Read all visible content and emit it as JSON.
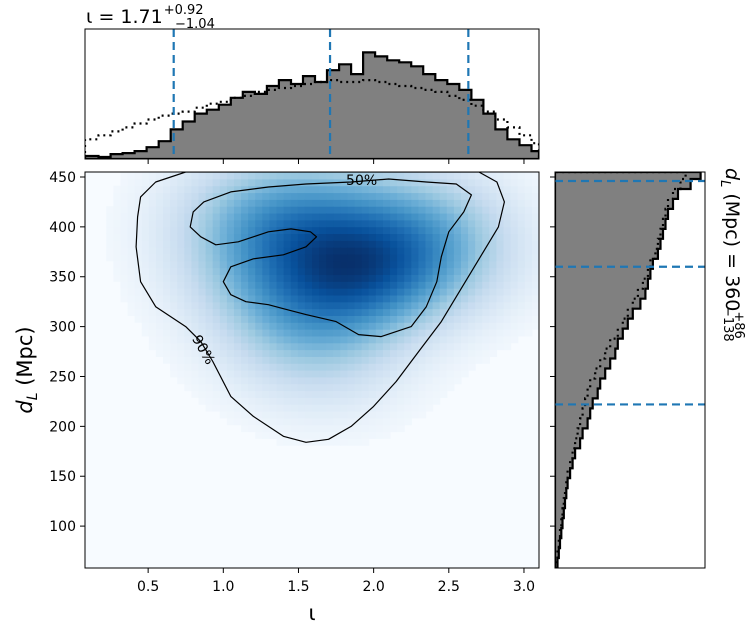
{
  "chart_data": {
    "type": "corner",
    "joint": {
      "type": "heatmap",
      "xlabel": "ι",
      "ylabel": "d_L (Mpc)",
      "xlabel_main": "ι",
      "ylabel_main": "d",
      "ylabel_sub": "L",
      "ylabel_unit": " (Mpc)",
      "xlim": [
        0.08,
        3.1
      ],
      "ylim": [
        58,
        455
      ],
      "xticks": [
        0.5,
        1.0,
        1.5,
        2.0,
        2.5,
        3.0
      ],
      "xtick_labels": [
        "0.5",
        "1.0",
        "1.5",
        "2.0",
        "2.5",
        "3.0"
      ],
      "yticks": [
        100,
        150,
        200,
        250,
        300,
        350,
        400,
        450
      ],
      "ytick_labels": [
        "100",
        "150",
        "200",
        "250",
        "300",
        "350",
        "400",
        "450"
      ],
      "colormap": "Blues",
      "density_peaks": [
        {
          "x": 1.93,
          "y": 352,
          "weight": 1.0
        },
        {
          "x": 1.55,
          "y": 418,
          "weight": 0.6
        },
        {
          "x": 2.35,
          "y": 410,
          "weight": 0.55
        },
        {
          "x": 1.2,
          "y": 360,
          "weight": 0.45
        },
        {
          "x": 1.5,
          "y": 300,
          "weight": 0.5
        },
        {
          "x": 1.1,
          "y": 420,
          "weight": 0.35
        },
        {
          "x": 2.55,
          "y": 360,
          "weight": 0.3
        },
        {
          "x": 1.7,
          "y": 250,
          "weight": 0.25
        }
      ],
      "contours": [
        {
          "label": "50%",
          "label_pos": {
            "x": 1.92,
            "y": 447,
            "angle": 0
          },
          "path": [
            [
              0.87,
              425
            ],
            [
              1.05,
              435
            ],
            [
              1.3,
              440
            ],
            [
              1.55,
              443
            ],
            [
              1.85,
              445
            ],
            [
              2.1,
              448
            ],
            [
              2.35,
              445
            ],
            [
              2.55,
              443
            ],
            [
              2.65,
              432
            ],
            [
              2.6,
              415
            ],
            [
              2.5,
              395
            ],
            [
              2.45,
              370
            ],
            [
              2.42,
              345
            ],
            [
              2.35,
              320
            ],
            [
              2.25,
              300
            ],
            [
              2.05,
              290
            ],
            [
              1.9,
              292
            ],
            [
              1.75,
              305
            ],
            [
              1.55,
              312
            ],
            [
              1.4,
              318
            ],
            [
              1.3,
              322
            ],
            [
              1.15,
              325
            ],
            [
              1.05,
              332
            ],
            [
              1.0,
              345
            ],
            [
              1.05,
              360
            ],
            [
              1.2,
              368
            ],
            [
              1.4,
              372
            ],
            [
              1.55,
              380
            ],
            [
              1.62,
              390
            ],
            [
              1.58,
              395
            ],
            [
              1.45,
              398
            ],
            [
              1.3,
              395
            ],
            [
              1.2,
              390
            ],
            [
              1.1,
              385
            ],
            [
              0.95,
              382
            ],
            [
              0.85,
              390
            ],
            [
              0.78,
              400
            ],
            [
              0.8,
              415
            ],
            [
              0.87,
              425
            ]
          ]
        },
        {
          "label": "90%",
          "label_pos": {
            "x": 0.87,
            "y": 277,
            "angle": 60
          },
          "path": [
            [
              0.45,
              430
            ],
            [
              0.55,
              445
            ],
            [
              0.75,
              455
            ],
            [
              2.7,
              455
            ],
            [
              2.82,
              445
            ],
            [
              2.87,
              425
            ],
            [
              2.83,
              400
            ],
            [
              2.73,
              375
            ],
            [
              2.65,
              355
            ],
            [
              2.55,
              330
            ],
            [
              2.45,
              305
            ],
            [
              2.3,
              275
            ],
            [
              2.15,
              245
            ],
            [
              2.0,
              220
            ],
            [
              1.85,
              200
            ],
            [
              1.7,
              187
            ],
            [
              1.55,
              184
            ],
            [
              1.4,
              190
            ],
            [
              1.2,
              210
            ],
            [
              1.05,
              230
            ],
            [
              0.93,
              265
            ],
            [
              0.85,
              285
            ],
            [
              0.75,
              300
            ],
            [
              0.55,
              320
            ],
            [
              0.45,
              345
            ],
            [
              0.42,
              380
            ],
            [
              0.43,
              410
            ],
            [
              0.45,
              430
            ]
          ]
        }
      ]
    },
    "top_marginal": {
      "type": "histogram",
      "title_main": "ι = 1.71",
      "title_sup": "+0.92",
      "title_sub": "−1.04",
      "quantile_lines": [
        0.67,
        1.71,
        2.63
      ],
      "bins": [
        0.08,
        0.17,
        0.25,
        0.33,
        0.41,
        0.49,
        0.57,
        0.65,
        0.73,
        0.81,
        0.89,
        0.97,
        1.05,
        1.13,
        1.21,
        1.29,
        1.37,
        1.45,
        1.53,
        1.61,
        1.69,
        1.77,
        1.85,
        1.93,
        2.01,
        2.09,
        2.17,
        2.25,
        2.33,
        2.41,
        2.49,
        2.57,
        2.65,
        2.73,
        2.81,
        2.89,
        2.97,
        3.05,
        3.1
      ],
      "filled_counts": [
        3,
        2,
        5,
        6,
        8,
        12,
        18,
        30,
        38,
        46,
        50,
        55,
        62,
        68,
        66,
        74,
        80,
        76,
        84,
        78,
        90,
        96,
        86,
        108,
        104,
        100,
        98,
        94,
        86,
        80,
        76,
        70,
        60,
        46,
        30,
        20,
        14,
        8
      ],
      "dotted_counts": [
        20,
        24,
        28,
        32,
        36,
        40,
        44,
        46,
        48,
        52,
        56,
        58,
        62,
        64,
        68,
        70,
        72,
        74,
        76,
        78,
        80,
        78,
        78,
        80,
        78,
        76,
        74,
        72,
        70,
        68,
        64,
        60,
        54,
        48,
        40,
        32,
        24,
        16
      ]
    },
    "right_marginal": {
      "type": "histogram",
      "orientation": "horizontal",
      "title_main": "d",
      "title_sub_L": "L",
      "title_unit": " (Mpc) = 360",
      "title_sup": "+86",
      "title_sub": "−138",
      "quantile_lines": [
        222,
        360,
        446
      ],
      "bins": [
        58,
        68,
        78,
        88,
        98,
        108,
        118,
        128,
        138,
        148,
        158,
        168,
        178,
        188,
        198,
        208,
        218,
        228,
        238,
        248,
        258,
        268,
        278,
        288,
        298,
        308,
        318,
        328,
        338,
        348,
        358,
        368,
        378,
        388,
        398,
        408,
        418,
        428,
        438,
        448,
        455
      ],
      "filled_counts": [
        2,
        3,
        4,
        5,
        6,
        7,
        8,
        9,
        10,
        12,
        14,
        16,
        20,
        22,
        26,
        28,
        30,
        34,
        36,
        40,
        44,
        48,
        50,
        54,
        58,
        62,
        68,
        72,
        74,
        76,
        78,
        82,
        84,
        86,
        88,
        90,
        94,
        98,
        108,
        116
      ],
      "dotted_counts": [
        1,
        2,
        3,
        4,
        5,
        6,
        7,
        8,
        9,
        10,
        12,
        14,
        16,
        18,
        20,
        22,
        24,
        26,
        28,
        32,
        36,
        40,
        44,
        50,
        54,
        58,
        62,
        66,
        70,
        74,
        76,
        80,
        82,
        84,
        86,
        88,
        90,
        94,
        100,
        104
      ]
    }
  }
}
